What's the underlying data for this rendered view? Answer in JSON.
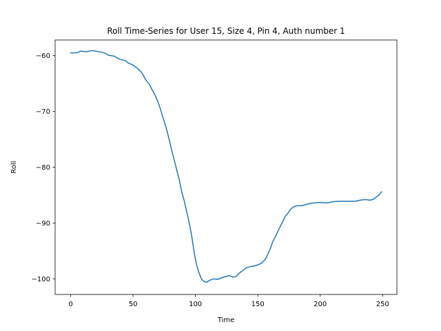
{
  "chart_data": {
    "type": "line",
    "title": "Roll Time-Series for User 15, Size 4, Pin 4, Auth number 1",
    "xlabel": "Time",
    "ylabel": "Roll",
    "xlim": [
      -12.45,
      261.45
    ],
    "ylim": [
      -102.8,
      -57.2
    ],
    "xticks": [
      0,
      50,
      100,
      150,
      200,
      250
    ],
    "yticks": [
      -100,
      -90,
      -80,
      -70,
      -60
    ],
    "grid": false,
    "legend": "none",
    "series": [
      {
        "color": "#1f77b4",
        "points": [
          [
            0,
            -59.5
          ],
          [
            5,
            -59.5
          ],
          [
            8,
            -59.2
          ],
          [
            12,
            -59.3
          ],
          [
            15,
            -59.2
          ],
          [
            18,
            -59.1
          ],
          [
            20,
            -59.2
          ],
          [
            25,
            -59.4
          ],
          [
            28,
            -59.6
          ],
          [
            30,
            -59.9
          ],
          [
            35,
            -60.1
          ],
          [
            38,
            -60.5
          ],
          [
            40,
            -60.7
          ],
          [
            44,
            -60.9
          ],
          [
            46,
            -61.3
          ],
          [
            50,
            -61.7
          ],
          [
            53,
            -62.2
          ],
          [
            56,
            -62.8
          ],
          [
            58,
            -63.4
          ],
          [
            60,
            -64.3
          ],
          [
            63,
            -65.1
          ],
          [
            65,
            -66.0
          ],
          [
            67,
            -66.8
          ],
          [
            69,
            -67.8
          ],
          [
            71,
            -68.9
          ],
          [
            73,
            -70.4
          ],
          [
            75,
            -71.8
          ],
          [
            77,
            -73.3
          ],
          [
            79,
            -75.1
          ],
          [
            81,
            -77.0
          ],
          [
            83,
            -78.7
          ],
          [
            85,
            -80.5
          ],
          [
            87,
            -82.2
          ],
          [
            89,
            -84.4
          ],
          [
            91,
            -86.0
          ],
          [
            93,
            -88.0
          ],
          [
            95,
            -90.0
          ],
          [
            97,
            -92.3
          ],
          [
            99,
            -95.3
          ],
          [
            101,
            -97.6
          ],
          [
            103,
            -99.0
          ],
          [
            105,
            -100.1
          ],
          [
            107,
            -100.5
          ],
          [
            109,
            -100.6
          ],
          [
            112,
            -100.2
          ],
          [
            115,
            -100.0
          ],
          [
            118,
            -100.1
          ],
          [
            121,
            -99.8
          ],
          [
            124,
            -99.6
          ],
          [
            127,
            -99.4
          ],
          [
            130,
            -99.7
          ],
          [
            133,
            -99.5
          ],
          [
            135,
            -99.0
          ],
          [
            138,
            -98.5
          ],
          [
            141,
            -98.0
          ],
          [
            144,
            -97.8
          ],
          [
            147,
            -97.7
          ],
          [
            150,
            -97.5
          ],
          [
            153,
            -97.2
          ],
          [
            156,
            -96.5
          ],
          [
            158,
            -95.6
          ],
          [
            160,
            -94.6
          ],
          [
            162,
            -93.3
          ],
          [
            164,
            -92.5
          ],
          [
            166,
            -91.5
          ],
          [
            168,
            -90.6
          ],
          [
            170,
            -89.7
          ],
          [
            172,
            -88.8
          ],
          [
            174,
            -88.3
          ],
          [
            176,
            -87.6
          ],
          [
            178,
            -87.2
          ],
          [
            181,
            -86.9
          ],
          [
            185,
            -86.9
          ],
          [
            190,
            -86.6
          ],
          [
            195,
            -86.4
          ],
          [
            200,
            -86.3
          ],
          [
            205,
            -86.4
          ],
          [
            210,
            -86.2
          ],
          [
            215,
            -86.1
          ],
          [
            220,
            -86.1
          ],
          [
            228,
            -86.1
          ],
          [
            232,
            -85.9
          ],
          [
            236,
            -85.8
          ],
          [
            240,
            -85.9
          ],
          [
            243,
            -85.7
          ],
          [
            245,
            -85.3
          ],
          [
            247,
            -85.0
          ],
          [
            249,
            -84.4
          ]
        ]
      }
    ]
  }
}
